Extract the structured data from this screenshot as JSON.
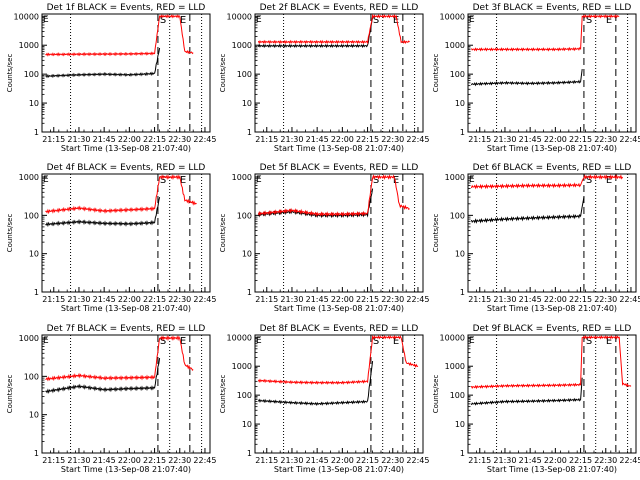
{
  "figure": {
    "xlabel": "Start Time (13-Sep-08 21:07:40)",
    "ylabel": "Counts/sec",
    "x_tick_labels": [
      "21:15",
      "21:30",
      "21:45",
      "22:00",
      "22:15",
      "22:30",
      "22:45"
    ],
    "y_tick_labels": [
      "1",
      "10",
      "100",
      "1000",
      "10000"
    ],
    "colors": {
      "events": "#000000",
      "lld": "#ff0000"
    }
  },
  "chart_data": [
    {
      "type": "line",
      "title": "Det 1f BLACK = Events, RED = LLD",
      "ylim": [
        1,
        12000
      ],
      "yscale": "log",
      "grid": false,
      "markers": [
        "S",
        "E"
      ],
      "series": [
        {
          "values": [
            {
              "x": "21:10",
              "y": 85
            },
            {
              "x": "21:30",
              "y": 95
            },
            {
              "x": "21:45",
              "y": 100
            },
            {
              "x": "22:00",
              "y": 95
            },
            {
              "x": "22:15",
              "y": 105
            },
            {
              "x": "22:18",
              "y": 800
            }
          ]
        },
        {
          "values": [
            {
              "x": "21:10",
              "y": 480
            },
            {
              "x": "21:30",
              "y": 490
            },
            {
              "x": "22:00",
              "y": 500
            },
            {
              "x": "22:15",
              "y": 520
            },
            {
              "x": "22:18",
              "y": 10000
            },
            {
              "x": "22:30",
              "y": 10000
            },
            {
              "x": "22:33",
              "y": 600
            },
            {
              "x": "22:38",
              "y": 550
            }
          ]
        }
      ]
    },
    {
      "type": "line",
      "title": "Det 2f BLACK = Events, RED = LLD",
      "ylim": [
        1,
        12000
      ],
      "yscale": "log",
      "grid": false,
      "markers": [
        "S",
        "E"
      ],
      "series": [
        {
          "values": [
            {
              "x": "21:10",
              "y": 950
            },
            {
              "x": "21:30",
              "y": 950
            },
            {
              "x": "22:00",
              "y": 950
            },
            {
              "x": "22:15",
              "y": 950
            },
            {
              "x": "22:18",
              "y": 9000
            }
          ]
        },
        {
          "values": [
            {
              "x": "21:10",
              "y": 1300
            },
            {
              "x": "21:30",
              "y": 1300
            },
            {
              "x": "22:00",
              "y": 1300
            },
            {
              "x": "22:15",
              "y": 1300
            },
            {
              "x": "22:18",
              "y": 10000
            },
            {
              "x": "22:32",
              "y": 10000
            },
            {
              "x": "22:35",
              "y": 1300
            },
            {
              "x": "22:40",
              "y": 1300
            }
          ]
        }
      ]
    },
    {
      "type": "line",
      "title": "Det 3f BLACK = Events, RED = LLD",
      "ylim": [
        1,
        12000
      ],
      "yscale": "log",
      "grid": false,
      "markers": [
        "S",
        "E"
      ],
      "series": [
        {
          "values": [
            {
              "x": "21:10",
              "y": 45
            },
            {
              "x": "21:30",
              "y": 50
            },
            {
              "x": "21:45",
              "y": 48
            },
            {
              "x": "22:00",
              "y": 50
            },
            {
              "x": "22:15",
              "y": 55
            },
            {
              "x": "22:16",
              "y": 150
            }
          ]
        },
        {
          "values": [
            {
              "x": "21:10",
              "y": 720
            },
            {
              "x": "21:30",
              "y": 720
            },
            {
              "x": "22:00",
              "y": 720
            },
            {
              "x": "22:15",
              "y": 750
            },
            {
              "x": "22:16",
              "y": 10000
            },
            {
              "x": "22:38",
              "y": 10000
            }
          ]
        }
      ]
    },
    {
      "type": "line",
      "title": "Det 4f BLACK = Events, RED = LLD",
      "ylim": [
        1,
        1200
      ],
      "yscale": "log",
      "grid": false,
      "markers": [
        "S",
        "E"
      ],
      "series": [
        {
          "values": [
            {
              "x": "21:10",
              "y": 58
            },
            {
              "x": "21:30",
              "y": 68
            },
            {
              "x": "21:45",
              "y": 62
            },
            {
              "x": "22:00",
              "y": 60
            },
            {
              "x": "22:15",
              "y": 65
            },
            {
              "x": "22:18",
              "y": 300
            }
          ]
        },
        {
          "values": [
            {
              "x": "21:10",
              "y": 125
            },
            {
              "x": "21:30",
              "y": 155
            },
            {
              "x": "21:45",
              "y": 130
            },
            {
              "x": "22:00",
              "y": 140
            },
            {
              "x": "22:15",
              "y": 150
            },
            {
              "x": "22:18",
              "y": 1000
            },
            {
              "x": "22:30",
              "y": 1000
            },
            {
              "x": "22:33",
              "y": 250
            },
            {
              "x": "22:40",
              "y": 200
            }
          ]
        }
      ]
    },
    {
      "type": "line",
      "title": "Det 5f BLACK = Events, RED = LLD",
      "ylim": [
        1,
        1200
      ],
      "yscale": "log",
      "grid": false,
      "markers": [
        "S",
        "E"
      ],
      "series": [
        {
          "values": [
            {
              "x": "21:10",
              "y": 105
            },
            {
              "x": "21:30",
              "y": 125
            },
            {
              "x": "21:45",
              "y": 100
            },
            {
              "x": "22:00",
              "y": 100
            },
            {
              "x": "22:15",
              "y": 105
            },
            {
              "x": "22:18",
              "y": 500
            }
          ]
        },
        {
          "values": [
            {
              "x": "21:10",
              "y": 110
            },
            {
              "x": "21:30",
              "y": 135
            },
            {
              "x": "21:45",
              "y": 108
            },
            {
              "x": "22:00",
              "y": 108
            },
            {
              "x": "22:15",
              "y": 112
            },
            {
              "x": "22:18",
              "y": 1000
            },
            {
              "x": "22:31",
              "y": 1000
            },
            {
              "x": "22:34",
              "y": 180
            },
            {
              "x": "22:40",
              "y": 150
            }
          ]
        }
      ]
    },
    {
      "type": "line",
      "title": "Det 6f BLACK = Events, RED = LLD",
      "ylim": [
        1,
        1200
      ],
      "yscale": "log",
      "grid": false,
      "markers": [
        "S",
        "E"
      ],
      "series": [
        {
          "values": [
            {
              "x": "21:10",
              "y": 70
            },
            {
              "x": "21:30",
              "y": 80
            },
            {
              "x": "21:45",
              "y": 85
            },
            {
              "x": "22:00",
              "y": 90
            },
            {
              "x": "22:15",
              "y": 95
            },
            {
              "x": "22:17",
              "y": 300
            }
          ]
        },
        {
          "values": [
            {
              "x": "21:10",
              "y": 560
            },
            {
              "x": "21:30",
              "y": 580
            },
            {
              "x": "21:45",
              "y": 600
            },
            {
              "x": "22:00",
              "y": 600
            },
            {
              "x": "22:15",
              "y": 620
            },
            {
              "x": "22:17",
              "y": 1000
            },
            {
              "x": "22:40",
              "y": 1000
            }
          ]
        }
      ]
    },
    {
      "type": "line",
      "title": "Det 7f BLACK = Events, RED = LLD",
      "ylim": [
        1,
        1200
      ],
      "yscale": "log",
      "grid": false,
      "markers": [
        "S",
        "E"
      ],
      "series": [
        {
          "values": [
            {
              "x": "21:10",
              "y": 40
            },
            {
              "x": "21:30",
              "y": 55
            },
            {
              "x": "21:45",
              "y": 45
            },
            {
              "x": "22:00",
              "y": 48
            },
            {
              "x": "22:15",
              "y": 50
            },
            {
              "x": "22:18",
              "y": 300
            }
          ]
        },
        {
          "values": [
            {
              "x": "21:10",
              "y": 85
            },
            {
              "x": "21:30",
              "y": 105
            },
            {
              "x": "21:45",
              "y": 90
            },
            {
              "x": "22:00",
              "y": 92
            },
            {
              "x": "22:15",
              "y": 95
            },
            {
              "x": "22:18",
              "y": 1000
            },
            {
              "x": "22:30",
              "y": 1000
            },
            {
              "x": "22:33",
              "y": 200
            },
            {
              "x": "22:38",
              "y": 150
            }
          ]
        }
      ]
    },
    {
      "type": "line",
      "title": "Det 8f BLACK = Events, RED = LLD",
      "ylim": [
        1,
        12000
      ],
      "yscale": "log",
      "grid": false,
      "markers": [
        "S",
        "E"
      ],
      "series": [
        {
          "values": [
            {
              "x": "21:10",
              "y": 65
            },
            {
              "x": "21:30",
              "y": 55
            },
            {
              "x": "21:45",
              "y": 50
            },
            {
              "x": "22:00",
              "y": 55
            },
            {
              "x": "22:15",
              "y": 60
            },
            {
              "x": "22:18",
              "y": 1500
            }
          ]
        },
        {
          "values": [
            {
              "x": "21:10",
              "y": 320
            },
            {
              "x": "21:30",
              "y": 280
            },
            {
              "x": "21:45",
              "y": 270
            },
            {
              "x": "22:00",
              "y": 270
            },
            {
              "x": "22:15",
              "y": 300
            },
            {
              "x": "22:18",
              "y": 10000
            },
            {
              "x": "22:35",
              "y": 10000
            },
            {
              "x": "22:38",
              "y": 1300
            },
            {
              "x": "22:45",
              "y": 1000
            }
          ]
        }
      ]
    },
    {
      "type": "line",
      "title": "Det 9f BLACK = Events, RED = LLD",
      "ylim": [
        1,
        12000
      ],
      "yscale": "log",
      "grid": false,
      "markers": [
        "S",
        "E"
      ],
      "series": [
        {
          "values": [
            {
              "x": "21:10",
              "y": 50
            },
            {
              "x": "21:30",
              "y": 60
            },
            {
              "x": "21:45",
              "y": 62
            },
            {
              "x": "22:00",
              "y": 65
            },
            {
              "x": "22:15",
              "y": 70
            },
            {
              "x": "22:16",
              "y": 400
            }
          ]
        },
        {
          "values": [
            {
              "x": "21:10",
              "y": 190
            },
            {
              "x": "21:30",
              "y": 210
            },
            {
              "x": "21:45",
              "y": 215
            },
            {
              "x": "22:00",
              "y": 220
            },
            {
              "x": "22:15",
              "y": 230
            },
            {
              "x": "22:16",
              "y": 10000
            },
            {
              "x": "22:38",
              "y": 10000
            },
            {
              "x": "22:40",
              "y": 250
            },
            {
              "x": "22:45",
              "y": 200
            }
          ]
        }
      ]
    }
  ]
}
